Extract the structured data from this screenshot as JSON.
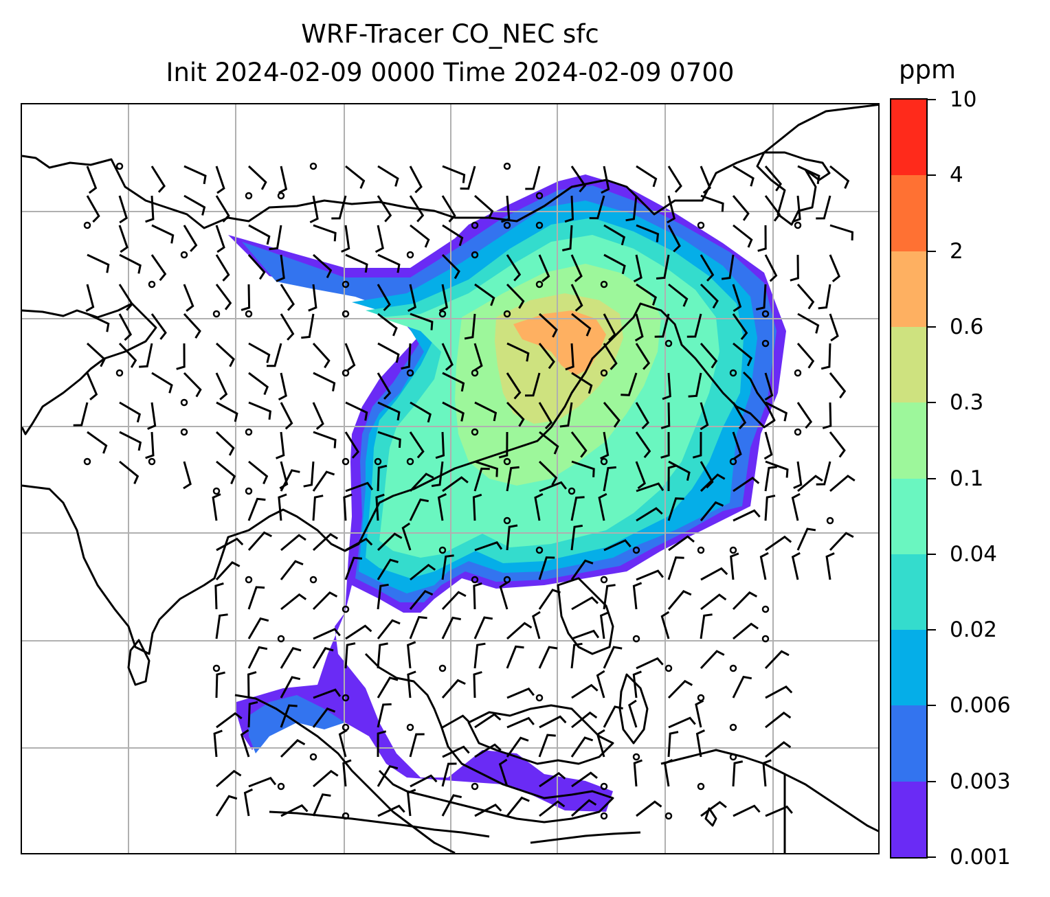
{
  "title": {
    "line1": "WRF-Tracer CO_NEC sfc",
    "line2": "Init 2024-02-09 0000 Time 2024-02-09 0700"
  },
  "colorbar": {
    "unit": "ppm",
    "levels": [
      "0.001",
      "0.003",
      "0.006",
      "0.02",
      "0.04",
      "0.1",
      "0.3",
      "0.6",
      "2",
      "4",
      "10"
    ],
    "colors": [
      "#6a2bf5",
      "#3374ef",
      "#05aee8",
      "#34dccd",
      "#6af6c0",
      "#9df79b",
      "#cee27f",
      "#feb061",
      "#ff7133",
      "#ff2a1b"
    ]
  },
  "map": {
    "gridlines": true,
    "coastline_color": "#000000",
    "gridline_color": "#b0b0b0"
  }
}
